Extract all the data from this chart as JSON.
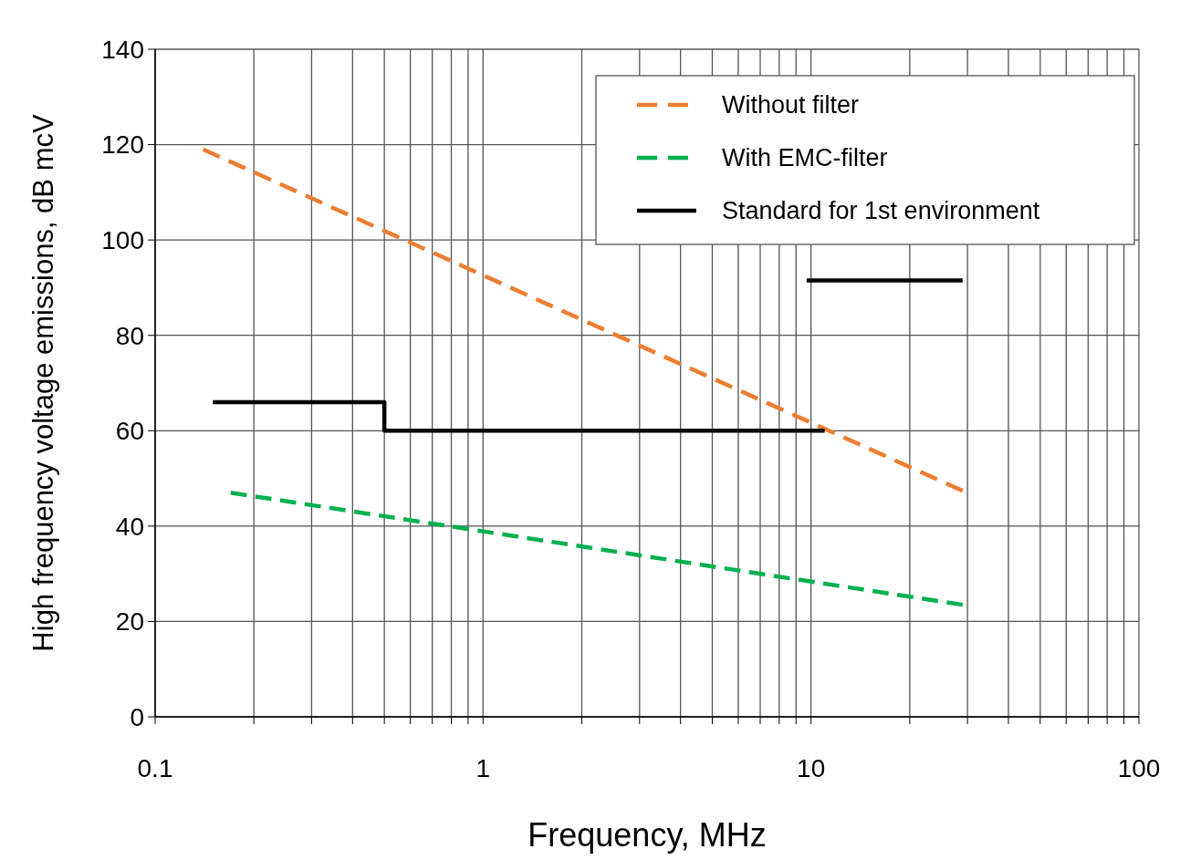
{
  "chart_data": {
    "type": "line",
    "xlabel": "Frequency, MHz",
    "ylabel": "High frequency voltage emissions, dB mcV",
    "log": "x",
    "xlim": [
      0.1,
      100
    ],
    "ylim": [
      0,
      140
    ],
    "xticks": [
      {
        "value": 0.1,
        "label": "0.1"
      },
      {
        "value": 0.2,
        "label": null
      },
      {
        "value": 0.3,
        "label": null
      },
      {
        "value": 0.4,
        "label": null
      },
      {
        "value": 0.5,
        "label": null
      },
      {
        "value": 0.6,
        "label": null
      },
      {
        "value": 0.7,
        "label": null
      },
      {
        "value": 0.8,
        "label": null
      },
      {
        "value": 0.9,
        "label": null
      },
      1,
      {
        "value": 2,
        "label": null
      },
      {
        "value": 3,
        "label": null
      },
      {
        "value": 4,
        "label": null
      },
      {
        "value": 5,
        "label": null
      },
      {
        "value": 6,
        "label": null
      },
      {
        "value": 7,
        "label": null
      },
      {
        "value": 8,
        "label": null
      },
      {
        "value": 9,
        "label": null
      },
      10,
      {
        "value": 20,
        "label": null
      },
      {
        "value": 30,
        "label": null
      },
      {
        "value": 40,
        "label": null
      },
      {
        "value": 50,
        "label": null
      },
      {
        "value": 60,
        "label": null
      },
      {
        "value": 70,
        "label": null
      },
      {
        "value": 80,
        "label": null
      },
      {
        "value": 90,
        "label": null
      },
      100
    ],
    "yticks": [
      0,
      20,
      40,
      60,
      80,
      100,
      120,
      140
    ],
    "grid": true,
    "legend": "top right",
    "series": [
      {
        "name": "Without filter",
        "color": "#ed7d31",
        "line_style": "dashed",
        "x": [
          0.14,
          29
        ],
        "values": [
          119,
          47.4
        ]
      },
      {
        "name": "With EMC-filter",
        "color": "#00b050",
        "line_style": "dashed",
        "x": [
          0.17,
          29
        ],
        "values": [
          47,
          23.5
        ]
      },
      {
        "name": "Standard for 1st environment",
        "color": "#000000",
        "line_style": "solid",
        "x": [
          0.15,
          0.5,
          0.5,
          11,
          10,
          9.7,
          29
        ],
        "values": [
          66,
          66,
          60,
          60,
          null,
          91.5,
          91.5
        ]
      }
    ]
  }
}
